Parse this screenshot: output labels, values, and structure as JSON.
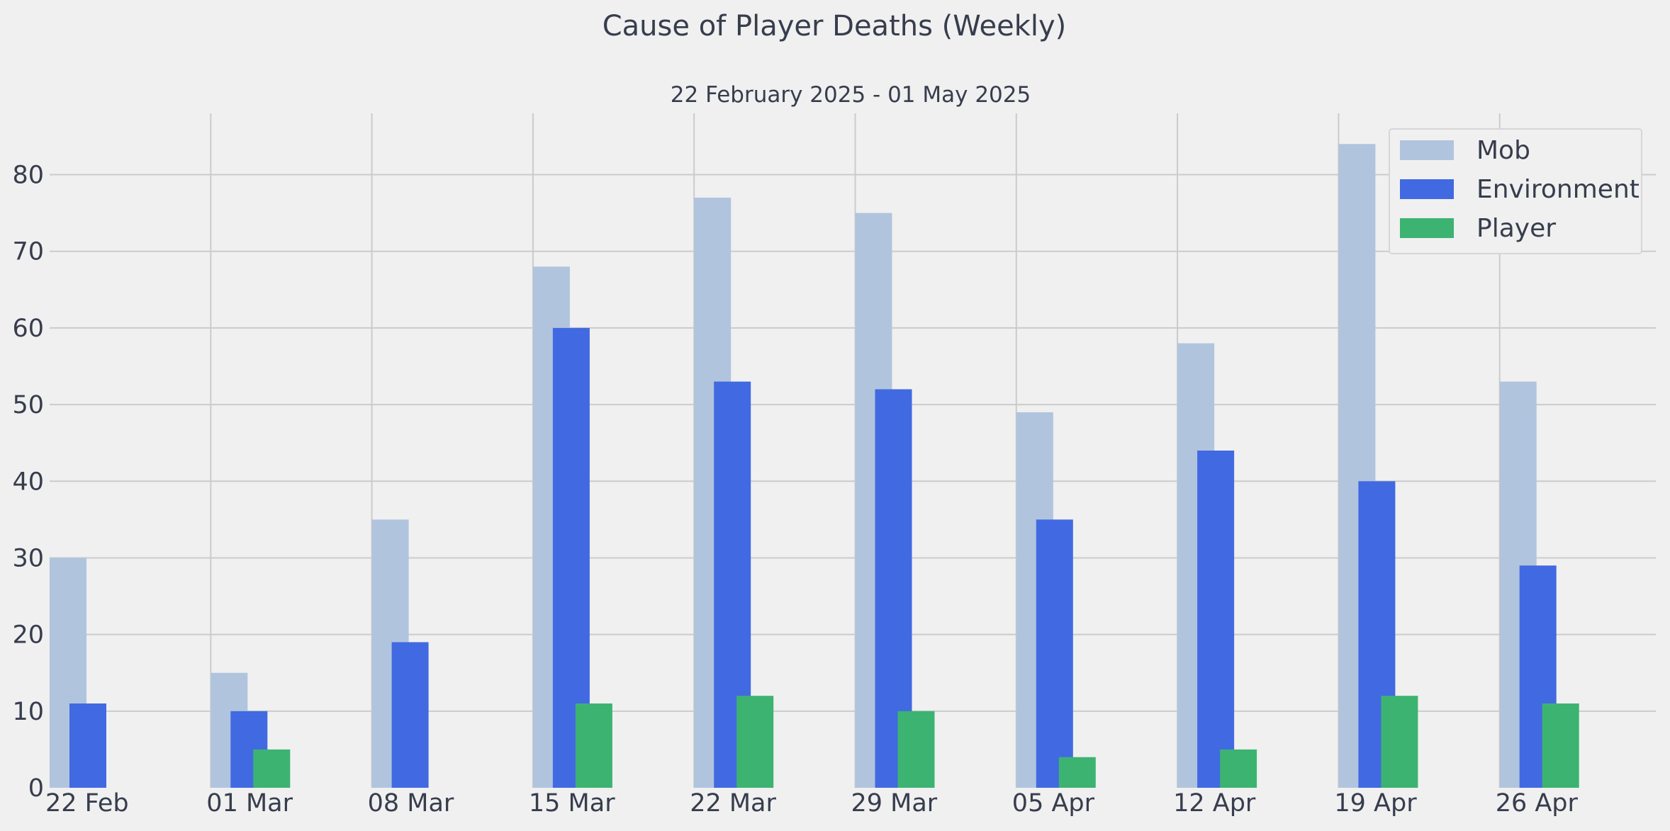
{
  "chart_data": {
    "type": "bar",
    "title": "Cause of Player Deaths (Weekly)",
    "subtitle": "22 February 2025 - 01 May 2025",
    "xlabel": "",
    "ylabel": "",
    "categories": [
      "22 Feb",
      "01 Mar",
      "08 Mar",
      "15 Mar",
      "22 Mar",
      "29 Mar",
      "05 Apr",
      "12 Apr",
      "19 Apr",
      "26 Apr"
    ],
    "ylim": [
      0,
      88
    ],
    "yticks": [
      "0",
      "10",
      "20",
      "30",
      "40",
      "50",
      "60",
      "70",
      "80"
    ],
    "grid": true,
    "legend_position": "top-right",
    "series": [
      {
        "name": "Mob",
        "color": "#b0c4de",
        "values": [
          30,
          15,
          35,
          68,
          77,
          75,
          49,
          58,
          84,
          53
        ]
      },
      {
        "name": "Environment",
        "color": "#4169e1",
        "values": [
          11,
          10,
          19,
          60,
          53,
          52,
          35,
          44,
          40,
          29
        ]
      },
      {
        "name": "Player",
        "color": "#3cb371",
        "values": [
          0,
          5,
          0,
          11,
          12,
          10,
          4,
          5,
          12,
          11
        ]
      }
    ]
  },
  "colors": {
    "background": "#f0f0f0",
    "grid": "#cbcbcb",
    "text": "#373d4d"
  }
}
